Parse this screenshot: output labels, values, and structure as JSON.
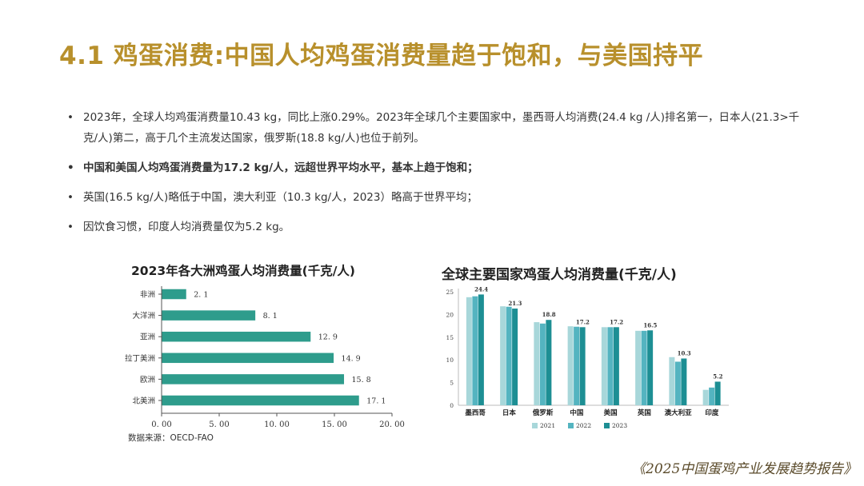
{
  "page": {
    "title": "4.1 鸡蛋消费:中国人均鸡蛋消费量趋于饱和，与美国持平",
    "bullet_marker": "•",
    "bullets": [
      "2023年，全球人均鸡蛋消费量10.43 kg，同比上涨0.29%。2023年全球几个主要国家中，墨西哥人均消费(24.4 kg /人)排名第一，日本人(21.3>千克/人)第二，高于几个主流发达国家，俄罗斯(18.8 kg/人)也位于前列。",
      "中国和美国人均鸡蛋消费量为17.2 kg/人，远超世界平均水平，基本上趋于饱和；",
      "英国(16.5 kg/人)略低于中国，澳大利亚（10.3 kg/人，2023）略高于世界平均；",
      "因饮食习惯，印度人均消费量仅为5.2 kg。"
    ],
    "source": "数据来源：OECD-FAO",
    "footer": "《2025中国蛋鸡产业发展趋势报告》"
  },
  "colors": {
    "title": "#b8902c",
    "bar_left": "#2e9c8c",
    "series_2021": "#a8d7da",
    "series_2022": "#54b4c0",
    "series_2023": "#1d8f94"
  },
  "chart_data": [
    {
      "type": "bar",
      "orientation": "horizontal",
      "title": "2023年各大洲鸡蛋人均消费量(千克/人)",
      "categories": [
        "非洲",
        "大洋洲",
        "亚洲",
        "拉丁美洲",
        "欧洲",
        "北美洲"
      ],
      "values": [
        2.1,
        8.1,
        12.9,
        14.9,
        15.8,
        17.1
      ],
      "value_labels": [
        "2. 1",
        "8. 1",
        "12. 9",
        "14. 9",
        "15. 8",
        "17. 1"
      ],
      "xlim": [
        0,
        20
      ],
      "xticks": [
        0,
        5,
        10,
        15,
        20
      ],
      "xtick_labels": [
        "0. 00",
        "5. 00",
        "10. 00",
        "15. 00",
        "20. 00"
      ],
      "grid": false
    },
    {
      "type": "bar",
      "orientation": "vertical",
      "title": "全球主要国家鸡蛋人均消费量(千克/人)",
      "categories": [
        "墨西哥",
        "日本",
        "俄罗斯",
        "中国",
        "美国",
        "英国",
        "澳大利亚",
        "印度"
      ],
      "series": [
        {
          "name": "2021",
          "values": [
            23.8,
            21.8,
            18.3,
            17.4,
            17.2,
            16.4,
            10.6,
            3.4
          ]
        },
        {
          "name": "2022",
          "values": [
            24.0,
            21.7,
            18.0,
            17.3,
            17.2,
            16.4,
            9.6,
            3.9
          ]
        },
        {
          "name": "2023",
          "values": [
            24.4,
            21.3,
            18.8,
            17.2,
            17.2,
            16.5,
            10.3,
            5.2
          ]
        }
      ],
      "labels_2023": [
        "24.4",
        "21.3",
        "18.8",
        "17.2",
        "17.2",
        "16.5",
        "10.3",
        "5.2"
      ],
      "ylim": [
        0,
        25
      ],
      "yticks": [
        0,
        5,
        10,
        15,
        20,
        25
      ],
      "grid": false,
      "legend": "bottom"
    }
  ]
}
